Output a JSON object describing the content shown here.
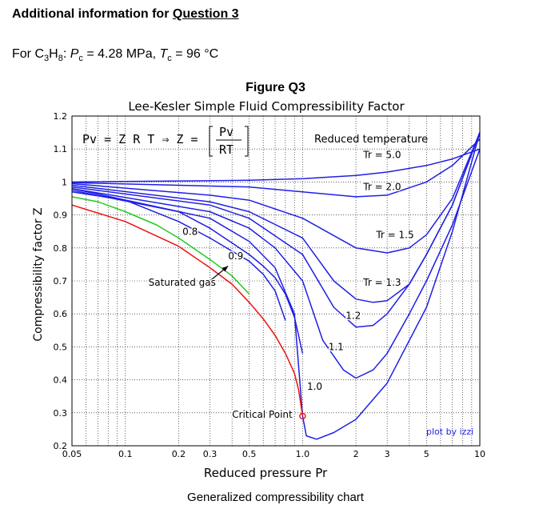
{
  "header": {
    "title_prefix": "Additional information for ",
    "title_link": "Question 3"
  },
  "given": {
    "for": "For C",
    "sub3": "3",
    "h": "H",
    "sub8": "8",
    "colon": ": ",
    "P": "P",
    "c1": "c",
    "pc_value": " = 4.28 MPa, ",
    "T": "T",
    "c2": "c",
    "tc_value": " = 96 °C"
  },
  "figure_label": "Figure Q3",
  "caption": "Generalized compressibility chart",
  "colors": {
    "blue": "#1f1fe6",
    "green": "#22cc22",
    "red": "#ee1111",
    "grid": "#000000"
  },
  "chart_data": {
    "type": "line",
    "title": "Lee-Kesler Simple Fluid Compressibility Factor",
    "xlabel": "Reduced pressure Pr",
    "ylabel": "Compressibility factor Z",
    "xscale": "log",
    "xlim": [
      0.05,
      10
    ],
    "ylim": [
      0.2,
      1.2
    ],
    "grid": true,
    "xticks": [
      0.05,
      0.1,
      0.2,
      0.3,
      0.5,
      1.0,
      2,
      3,
      5,
      10
    ],
    "xtick_labels": [
      "0.05",
      "0.1",
      "0.2",
      "0.3",
      "0.5",
      "1.0",
      "2",
      "3",
      "5",
      "10"
    ],
    "yticks": [
      0.2,
      0.3,
      0.4,
      0.5,
      0.6,
      0.7,
      0.8,
      0.9,
      1,
      1.1,
      1.2
    ],
    "ytick_labels": [
      "0.2",
      "0.3",
      "0.4",
      "0.5",
      "0.6",
      "0.7",
      "0.8",
      "0.9",
      "1",
      "1.1",
      "1.2"
    ],
    "equation": {
      "lhs": "Pv = Z R T ⇒ Z =",
      "num": "Pv",
      "den": "RT"
    },
    "legend_title": "Reduced temperature",
    "credit": "plot by izzi",
    "series": [
      {
        "name": "Tr = 5.0",
        "color": "blue",
        "x": [
          0.05,
          0.5,
          1,
          2,
          3,
          5,
          7,
          10
        ],
        "y": [
          1.0,
          1.005,
          1.01,
          1.02,
          1.03,
          1.05,
          1.07,
          1.1
        ]
      },
      {
        "name": "Tr = 2.0",
        "color": "blue",
        "x": [
          0.05,
          0.5,
          1,
          2,
          3,
          5,
          7,
          10
        ],
        "y": [
          0.998,
          0.985,
          0.97,
          0.955,
          0.96,
          1.0,
          1.05,
          1.13
        ]
      },
      {
        "name": "Tr = 1.5",
        "color": "blue",
        "x": [
          0.05,
          0.3,
          0.5,
          1,
          2,
          3,
          4,
          5,
          7,
          10
        ],
        "y": [
          0.995,
          0.96,
          0.945,
          0.89,
          0.8,
          0.785,
          0.8,
          0.84,
          0.95,
          1.15
        ]
      },
      {
        "name": "Tr = 1.3",
        "color": "blue",
        "x": [
          0.05,
          0.3,
          0.5,
          1,
          1.5,
          2,
          2.5,
          3,
          4,
          5,
          7,
          10
        ],
        "y": [
          0.99,
          0.94,
          0.91,
          0.83,
          0.7,
          0.645,
          0.635,
          0.64,
          0.69,
          0.78,
          0.93,
          1.15
        ]
      },
      {
        "name": "Tr = 1.2",
        "color": "blue",
        "x": [
          0.05,
          0.3,
          0.5,
          1,
          1.5,
          2,
          2.5,
          3,
          4,
          5,
          7,
          10
        ],
        "y": [
          0.985,
          0.93,
          0.89,
          0.78,
          0.62,
          0.56,
          0.565,
          0.6,
          0.69,
          0.78,
          0.93,
          1.15
        ]
      },
      {
        "name": "Tr = 1.1",
        "color": "blue",
        "x": [
          0.05,
          0.3,
          0.5,
          0.7,
          1,
          1.3,
          1.7,
          2,
          2.5,
          3,
          4,
          5,
          7,
          10
        ],
        "y": [
          0.98,
          0.91,
          0.86,
          0.8,
          0.7,
          0.52,
          0.43,
          0.405,
          0.43,
          0.48,
          0.6,
          0.7,
          0.87,
          1.1
        ]
      },
      {
        "name": "Tr = 1.0",
        "color": "blue",
        "x": [
          0.05,
          0.3,
          0.5,
          0.7,
          0.9,
          1.0,
          1.05,
          1.2,
          1.5,
          2,
          3,
          5,
          7,
          10
        ],
        "y": [
          0.98,
          0.89,
          0.82,
          0.74,
          0.6,
          0.29,
          0.23,
          0.22,
          0.24,
          0.28,
          0.39,
          0.62,
          0.85,
          1.15
        ]
      },
      {
        "name": "Tr = 0.9",
        "color": "blue",
        "x": [
          0.05,
          0.2,
          0.3,
          0.4,
          0.5,
          0.6,
          0.7,
          0.8,
          0.9,
          1.0
        ],
        "y": [
          0.975,
          0.91,
          0.86,
          0.815,
          0.78,
          0.745,
          0.71,
          0.66,
          0.59,
          0.48
        ]
      },
      {
        "name": "Tr = 0.8",
        "color": "blue",
        "x": [
          0.05,
          0.1,
          0.2,
          0.3,
          0.4,
          0.5,
          0.6,
          0.7,
          0.8
        ],
        "y": [
          0.97,
          0.945,
          0.88,
          0.83,
          0.79,
          0.76,
          0.72,
          0.67,
          0.58
        ]
      },
      {
        "name": "Saturated gas",
        "color": "green",
        "x": [
          0.05,
          0.07,
          0.1,
          0.15,
          0.2,
          0.3,
          0.4,
          0.5
        ],
        "y": [
          0.955,
          0.94,
          0.91,
          0.87,
          0.83,
          0.765,
          0.715,
          0.66
        ]
      },
      {
        "name": "Critical Point",
        "color": "red",
        "x": [
          0.05,
          0.1,
          0.2,
          0.3,
          0.4,
          0.5,
          0.6,
          0.7,
          0.8,
          0.9,
          0.95,
          1.0
        ],
        "y": [
          0.93,
          0.88,
          0.805,
          0.74,
          0.69,
          0.635,
          0.585,
          0.535,
          0.48,
          0.42,
          0.37,
          0.29
        ]
      }
    ],
    "annotations": [
      {
        "text": "Tr = 5.0",
        "x": 2.2,
        "y": 1.073
      },
      {
        "text": "Tr = 2.0",
        "x": 2.2,
        "y": 0.975
      },
      {
        "text": "Tr = 1.5",
        "x": 2.6,
        "y": 0.83
      },
      {
        "text": "Tr = 1.3",
        "x": 2.2,
        "y": 0.685
      },
      {
        "text": "1.2",
        "x": 1.75,
        "y": 0.585
      },
      {
        "text": "1.1",
        "x": 1.4,
        "y": 0.49
      },
      {
        "text": "1.0",
        "x": 1.06,
        "y": 0.37
      },
      {
        "text": "0.8",
        "x": 0.21,
        "y": 0.84
      },
      {
        "text": "0.9",
        "x": 0.38,
        "y": 0.765
      },
      {
        "text": "Saturated gas",
        "x": 0.135,
        "y": 0.685
      },
      {
        "text": "Critical Point",
        "x": 0.4,
        "y": 0.285
      }
    ],
    "critical_point": {
      "x": 1.0,
      "y": 0.29
    },
    "arrow": {
      "from": [
        0.3,
        0.7
      ],
      "to": [
        0.38,
        0.745
      ]
    }
  }
}
